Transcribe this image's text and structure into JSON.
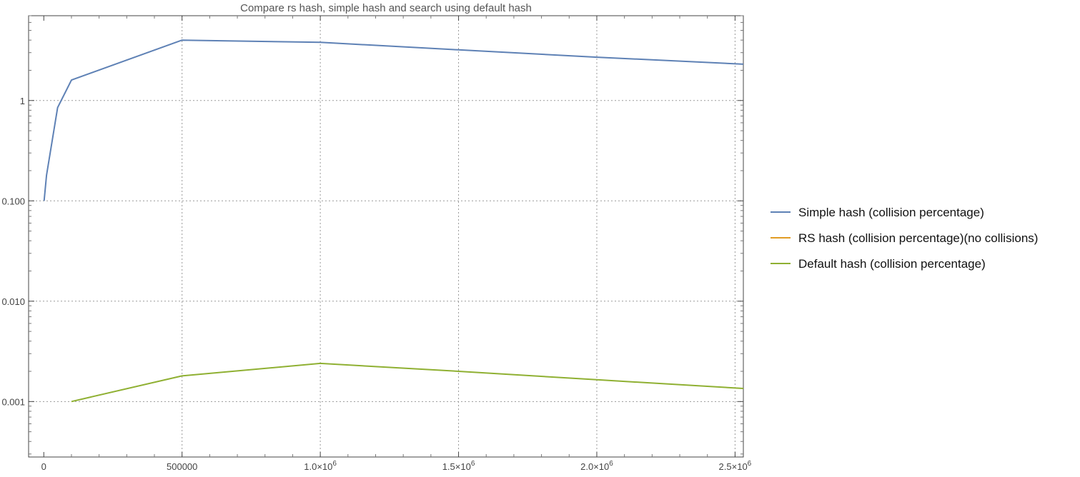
{
  "chart_data": {
    "type": "line",
    "title": "Compare rs hash, simple hash and search using default hash",
    "xlabel": "",
    "ylabel": "",
    "y_scale": "log",
    "xlim": [
      -55000,
      2530000
    ],
    "ylim": [
      0.00028,
      7.0
    ],
    "grid": true,
    "legend_position": "right",
    "x_ticks": [
      {
        "value": 0,
        "label": "0"
      },
      {
        "value": 500000,
        "label": "500000"
      },
      {
        "value": 1000000,
        "mantissa": "1.0",
        "exponent": "6"
      },
      {
        "value": 1500000,
        "mantissa": "1.5",
        "exponent": "6"
      },
      {
        "value": 2000000,
        "mantissa": "2.0",
        "exponent": "6"
      },
      {
        "value": 2500000,
        "mantissa": "2.5",
        "exponent": "6"
      }
    ],
    "y_ticks": [
      {
        "value": 0.001,
        "label": "0.001"
      },
      {
        "value": 0.01,
        "label": "0.010"
      },
      {
        "value": 0.1,
        "label": "0.100"
      },
      {
        "value": 1,
        "label": "1"
      }
    ],
    "series": [
      {
        "name": "Simple hash (collision percentage)",
        "color": "#5e81b5",
        "x": [
          1000,
          10000,
          50000,
          100000,
          500000,
          1000000,
          1500000,
          2000000,
          2530000
        ],
        "y": [
          0.1,
          0.18,
          0.85,
          1.6,
          4.0,
          3.8,
          3.2,
          2.7,
          2.3
        ]
      },
      {
        "name": "RS hash (collision percentage)(no collisions)",
        "color": "#e19c24",
        "x": [],
        "y": []
      },
      {
        "name": "Default hash (collision percentage)",
        "color": "#8fb032",
        "x": [
          100000,
          500000,
          1000000,
          1500000,
          2000000,
          2530000
        ],
        "y": [
          0.001,
          0.0018,
          0.0024,
          0.002,
          0.00165,
          0.00135
        ]
      }
    ]
  }
}
